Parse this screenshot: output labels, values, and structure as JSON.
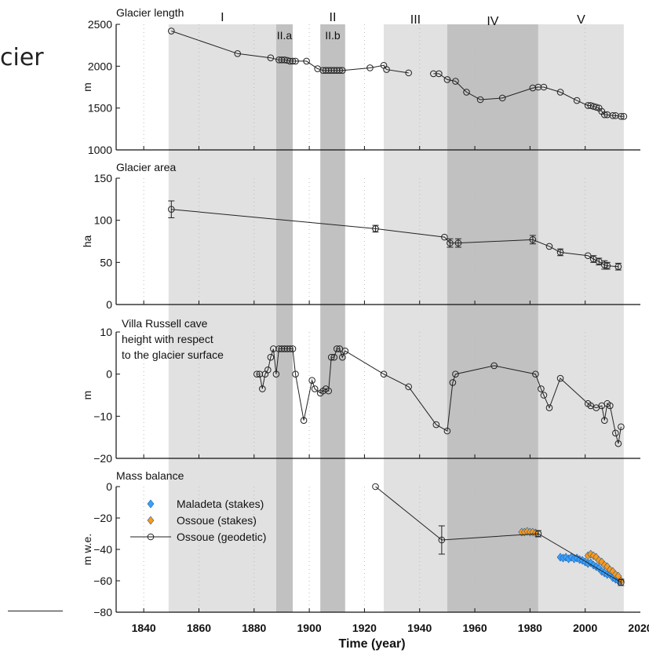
{
  "slide_fragment": "cier",
  "colors": {
    "light_band": "#e1e1e1",
    "dark_band": "#c1c1c1",
    "line": "#222222",
    "maladeta": "#3aa0ff",
    "ossoue": "#ff9a1a"
  },
  "chart_data": {
    "type": "line",
    "shared_x": {
      "label": "Time (year)",
      "range": [
        1830,
        2020
      ],
      "ticks": [
        1840,
        1860,
        1880,
        1900,
        1920,
        1940,
        1960,
        1980,
        2000,
        2020
      ]
    },
    "periods": [
      {
        "label": "I",
        "start": 1849,
        "end": 1888,
        "shade": "light"
      },
      {
        "label": "II.a",
        "start": 1888,
        "end": 1894,
        "shade": "dark"
      },
      {
        "label": "II",
        "start": 1904,
        "end": 1913,
        "shade": "none"
      },
      {
        "label": "II.b",
        "start": 1904,
        "end": 1913,
        "shade": "dark"
      },
      {
        "label": "III",
        "start": 1927,
        "end": 1950,
        "shade": "light"
      },
      {
        "label": "IV",
        "start": 1950,
        "end": 1983,
        "shade": "dark"
      },
      {
        "label": "V",
        "start": 1983,
        "end": 2014,
        "shade": "light"
      }
    ],
    "panels": [
      {
        "title": "Glacier length",
        "ylabel": "m",
        "ylim": [
          1000,
          2500
        ],
        "yticks": [
          1000,
          1500,
          2000,
          2500
        ],
        "series": [
          {
            "points": [
              [
                1850,
                2420
              ],
              [
                1874,
                2150
              ],
              [
                1886,
                2100
              ],
              [
                1889,
                2075
              ],
              [
                1890,
                2075
              ],
              [
                1891,
                2075
              ],
              [
                1892,
                2070
              ],
              [
                1893,
                2060
              ],
              [
                1894,
                2060
              ],
              [
                1895,
                2060
              ],
              [
                1899,
                2060
              ],
              [
                1903,
                1970
              ],
              [
                1905,
                1950
              ],
              [
                1906,
                1950
              ],
              [
                1907,
                1950
              ],
              [
                1908,
                1950
              ],
              [
                1909,
                1950
              ],
              [
                1910,
                1950
              ],
              [
                1911,
                1950
              ],
              [
                1912,
                1950
              ],
              [
                1922,
                1980
              ],
              [
                1927,
                2010
              ],
              [
                1928,
                1960
              ],
              [
                1936,
                1920
              ]
            ]
          },
          {
            "points": [
              [
                1945,
                1910
              ],
              [
                1947,
                1910
              ],
              [
                1950,
                1840
              ],
              [
                1953,
                1820
              ],
              [
                1957,
                1690
              ],
              [
                1962,
                1600
              ],
              [
                1970,
                1620
              ],
              [
                1981,
                1740
              ],
              [
                1983,
                1750
              ],
              [
                1985,
                1750
              ],
              [
                1991,
                1690
              ],
              [
                1997,
                1590
              ],
              [
                2001,
                1530
              ],
              [
                2002,
                1530
              ],
              [
                2003,
                1520
              ],
              [
                2004,
                1510
              ],
              [
                2005,
                1500
              ],
              [
                2006,
                1460
              ],
              [
                2007,
                1420
              ],
              [
                2008,
                1420
              ],
              [
                2010,
                1410
              ],
              [
                2011,
                1410
              ],
              [
                2013,
                1400
              ],
              [
                2014,
                1400
              ]
            ]
          }
        ]
      },
      {
        "title": "Glacier area",
        "ylabel": "ha",
        "ylim": [
          0,
          150
        ],
        "yticks": [
          0,
          50,
          100,
          150
        ],
        "series": [
          {
            "points": [
              [
                1850,
                113,
                10
              ],
              [
                1924,
                90,
                4
              ],
              [
                1949,
                80,
                0
              ],
              [
                1951,
                73,
                5
              ],
              [
                1954,
                73,
                5
              ],
              [
                1981,
                77,
                5
              ],
              [
                1987,
                69,
                0
              ],
              [
                1991,
                62,
                4
              ],
              [
                2001,
                58,
                0
              ],
              [
                2003,
                54,
                4
              ],
              [
                2005,
                51,
                4
              ],
              [
                2007,
                47,
                5
              ],
              [
                2008,
                46,
                4
              ],
              [
                2012,
                45,
                4
              ]
            ]
          }
        ]
      },
      {
        "title_lines": [
          "Villa Russell cave",
          "height with respect",
          "to the glacier surface"
        ],
        "ylabel": "m",
        "ylim": [
          -20,
          10
        ],
        "yticks": [
          -20,
          -10,
          0,
          10
        ],
        "series": [
          {
            "points": [
              [
                1881,
                0
              ],
              [
                1882,
                0
              ],
              [
                1883,
                -3.5
              ],
              [
                1884,
                0
              ],
              [
                1885,
                1
              ],
              [
                1886,
                4
              ],
              [
                1887,
                6
              ],
              [
                1888,
                0
              ],
              [
                1889,
                6
              ],
              [
                1890,
                6
              ],
              [
                1891,
                6
              ],
              [
                1892,
                6
              ],
              [
                1893,
                6
              ],
              [
                1894,
                6
              ],
              [
                1895,
                0
              ],
              [
                1898,
                -11
              ],
              [
                1901,
                -1.5
              ],
              [
                1902,
                -3.5
              ],
              [
                1904,
                -4.5
              ],
              [
                1905,
                -4
              ],
              [
                1906,
                -3.5
              ],
              [
                1907,
                -4
              ],
              [
                1908,
                4
              ],
              [
                1909,
                4
              ],
              [
                1910,
                6
              ],
              [
                1911,
                6
              ],
              [
                1912,
                4
              ],
              [
                1913,
                5.5
              ],
              [
                1927,
                0
              ],
              [
                1936,
                -3
              ],
              [
                1946,
                -12
              ],
              [
                1950,
                -13.5
              ],
              [
                1952,
                -2
              ],
              [
                1953,
                0
              ],
              [
                1967,
                2
              ],
              [
                1982,
                0
              ],
              [
                1984,
                -3.5
              ],
              [
                1985,
                -5
              ],
              [
                1987,
                -8
              ],
              [
                1991,
                -1
              ],
              [
                2001,
                -7
              ],
              [
                2002,
                -7.5
              ],
              [
                2004,
                -8
              ],
              [
                2006,
                -7.5
              ],
              [
                2007,
                -11
              ],
              [
                2008,
                -7
              ],
              [
                2009,
                -7.5
              ],
              [
                2011,
                -14
              ],
              [
                2012,
                -16.5
              ],
              [
                2013,
                -12.5
              ]
            ]
          }
        ]
      },
      {
        "title": "Mass balance",
        "ylabel": "m w.e.",
        "ylim": [
          -80,
          0
        ],
        "yticks": [
          -80,
          -60,
          -40,
          -20,
          0
        ],
        "ytick_labels": [
          "−80",
          "−60",
          "−40",
          "−20",
          "0"
        ],
        "legend_position": "upper-left",
        "series": [
          {
            "name": "Maladeta (stakes)",
            "marker": "diamond",
            "color": "#3aa0ff",
            "points": [
              [
                1991,
                -45
              ],
              [
                1992,
                -45.5
              ],
              [
                1993,
                -45
              ],
              [
                1994,
                -46
              ],
              [
                1995,
                -45
              ],
              [
                1996,
                -46
              ],
              [
                1997,
                -45.5
              ],
              [
                1998,
                -46.5
              ],
              [
                1999,
                -47
              ],
              [
                2000,
                -48
              ],
              [
                2001,
                -49
              ],
              [
                2002,
                -48.5
              ],
              [
                2003,
                -50
              ],
              [
                2004,
                -51
              ],
              [
                2005,
                -52
              ],
              [
                2006,
                -54
              ],
              [
                2007,
                -55
              ],
              [
                2008,
                -56
              ],
              [
                2009,
                -56
              ],
              [
                2010,
                -58
              ],
              [
                2011,
                -59
              ],
              [
                2012,
                -60
              ]
            ]
          },
          {
            "name": "Ossoue (stakes)",
            "marker": "diamond",
            "color": "#ff9a1a",
            "points": [
              [
                1977,
                -29
              ],
              [
                1978,
                -29
              ],
              [
                1979,
                -28.5
              ],
              [
                1980,
                -29
              ],
              [
                1981,
                -29
              ],
              [
                1982,
                -29.5
              ],
              [
                2001,
                -44
              ],
              [
                2002,
                -43
              ],
              [
                2003,
                -44
              ],
              [
                2004,
                -45
              ],
              [
                2005,
                -47
              ],
              [
                2006,
                -48
              ],
              [
                2007,
                -50
              ],
              [
                2008,
                -51
              ],
              [
                2009,
                -53
              ],
              [
                2010,
                -54
              ],
              [
                2011,
                -56
              ],
              [
                2012,
                -57
              ],
              [
                2013,
                -60
              ]
            ]
          },
          {
            "name": "Ossoue (geodetic)",
            "marker": "circle",
            "color": "#222222",
            "points": [
              [
                1924,
                0,
                0
              ],
              [
                1948,
                -34,
                9
              ],
              [
                1983,
                -30,
                2
              ],
              [
                2013,
                -61,
                2
              ]
            ]
          }
        ]
      }
    ]
  }
}
